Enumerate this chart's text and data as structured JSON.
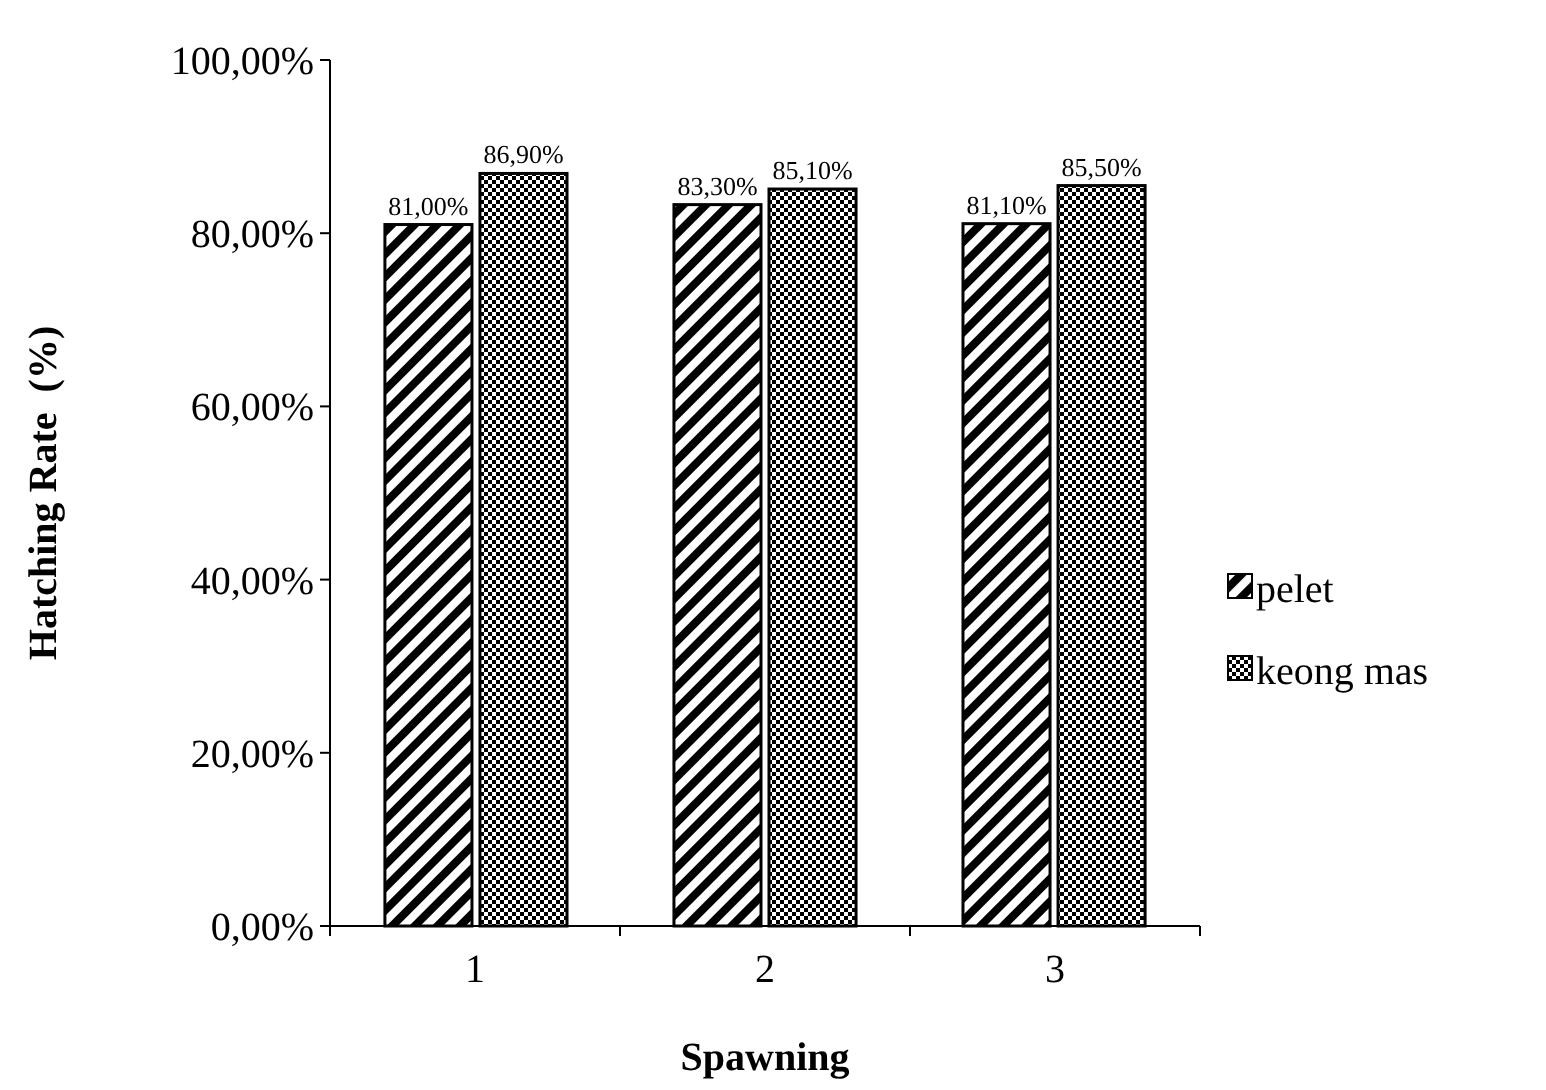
{
  "chart_data": {
    "type": "bar",
    "xlabel": "Spawning",
    "ylabel": "Hatching Rate  (%)",
    "categories": [
      "1",
      "2",
      "3"
    ],
    "series": [
      {
        "name": "pelet",
        "color": "#000000",
        "values": [
          81.0,
          83.3,
          81.1
        ],
        "value_labels": [
          "81,00%",
          "83,30%",
          "81,10%"
        ]
      },
      {
        "name": "keong mas",
        "color": "#000000",
        "values": [
          86.9,
          85.1,
          85.5
        ],
        "value_labels": [
          "86,90%",
          "85,10%",
          "85,50%"
        ]
      }
    ],
    "ylim": [
      0,
      100
    ],
    "yticks": [
      {
        "value": 0,
        "label": "0,00%"
      },
      {
        "value": 20,
        "label": "20,00%"
      },
      {
        "value": 40,
        "label": "40,00%"
      },
      {
        "value": 60,
        "label": "60,00%"
      },
      {
        "value": 80,
        "label": "80,00%"
      },
      {
        "value": 100,
        "label": "100,00%"
      }
    ],
    "grid": false,
    "legend": "right"
  }
}
